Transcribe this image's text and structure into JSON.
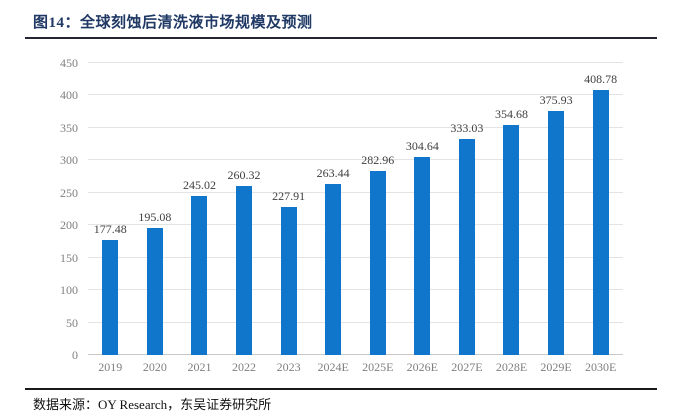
{
  "page": {
    "title": "图14：全球刻蚀后清洗液市场规模及预测",
    "source": "数据来源：OY Research，东吴证券研究所"
  },
  "colors": {
    "bar": "#0f76cc",
    "title": "#1f3864",
    "title_rule": "#252533",
    "footer_rule": "#1a1a1a",
    "gridline": "#e4e4e4",
    "axis_line": "#c9c9c9",
    "axis_label": "#7f7f7f",
    "data_label": "#404040"
  },
  "chart_data": {
    "type": "bar",
    "title": "全球刻蚀后清洗液市场规模及预测",
    "categories": [
      "2019",
      "2020",
      "2021",
      "2022",
      "2023",
      "2024E",
      "2025E",
      "2026E",
      "2027E",
      "2028E",
      "2029E",
      "2030E"
    ],
    "values": [
      177.48,
      195.08,
      245.02,
      260.32,
      227.91,
      263.44,
      282.96,
      304.64,
      333.03,
      354.68,
      375.93,
      408.78
    ],
    "ylim": [
      0,
      450
    ],
    "ytick_step": 50,
    "grid": true,
    "legend": false,
    "data_labels": true,
    "xlabel": "",
    "ylabel": ""
  }
}
